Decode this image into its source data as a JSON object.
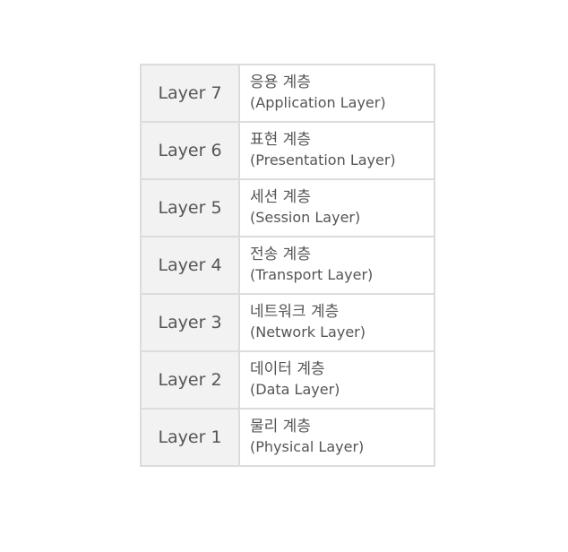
{
  "layers": [
    {
      "label": "Layer 7",
      "name_ko": "응용 계층",
      "name_en": "(Application Layer)"
    },
    {
      "label": "Layer 6",
      "name_ko": "표현 계층",
      "name_en": "(Presentation Layer)"
    },
    {
      "label": "Layer 5",
      "name_ko": "세션 계층",
      "name_en": "(Session Layer)"
    },
    {
      "label": "Layer 4",
      "name_ko": "전송 계층",
      "name_en": "(Transport Layer)"
    },
    {
      "label": "Layer 3",
      "name_ko": "네트워크 계층",
      "name_en": "(Network Layer)"
    },
    {
      "label": "Layer 2",
      "name_ko": "데이터 계층",
      "name_en": "(Data Layer)"
    },
    {
      "label": "Layer 1",
      "name_ko": "물리 계층",
      "name_en": "(Physical Layer)"
    }
  ],
  "colors": {
    "label_background": "#f2f2f2",
    "border": "#dcdcdc",
    "text": "#555555"
  }
}
